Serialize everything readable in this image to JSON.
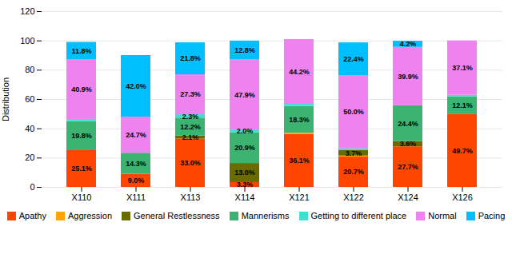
{
  "chart_data": {
    "type": "bar",
    "stacked": true,
    "data_labels": true,
    "categories": [
      "X110",
      "X111",
      "X113",
      "X114",
      "X121",
      "X122",
      "X124",
      "X126"
    ],
    "series": [
      {
        "name": "Apathy",
        "color": "#FF4500",
        "values": [
          25.1,
          9.0,
          33.0,
          3.3,
          36.1,
          20.7,
          27.7,
          49.7
        ],
        "value_labels": [
          "25.1%",
          "9.0%",
          "33.0%",
          "3.3%",
          "36.1%",
          "20.7%",
          "27.7%",
          "49.7%"
        ]
      },
      {
        "name": "Aggression",
        "color": "#FFA500",
        "values": [
          0.0,
          0.0,
          0.0,
          0.0,
          0.9,
          0.7,
          0.0,
          0.0
        ],
        "value_labels": [
          null,
          null,
          null,
          null,
          null,
          null,
          null,
          null
        ]
      },
      {
        "name": "General Restlessness",
        "color": "#6B6B00",
        "values": [
          0.0,
          0.0,
          2.1,
          13.0,
          0.0,
          3.7,
          3.6,
          0.0
        ],
        "value_labels": [
          null,
          null,
          "2.1%",
          "13.0%",
          null,
          "3.7%",
          "3.6%",
          null
        ]
      },
      {
        "name": "Mannerisms",
        "color": "#3CB371",
        "values": [
          19.8,
          14.3,
          12.2,
          20.9,
          18.3,
          0.0,
          24.4,
          12.1
        ],
        "value_labels": [
          "19.8%",
          "14.3%",
          "12.2%",
          "20.9%",
          "18.3%",
          null,
          "24.4%",
          "12.1%"
        ]
      },
      {
        "name": "Getting to different place",
        "color": "#40E0D0",
        "values": [
          1.4,
          0.0,
          2.3,
          2.0,
          1.4,
          1.2,
          0.0,
          1.1
        ],
        "value_labels": [
          null,
          null,
          "2.3%",
          "2.0%",
          null,
          null,
          null,
          null
        ]
      },
      {
        "name": "Normal",
        "color": "#EE82EE",
        "values": [
          40.9,
          24.7,
          27.3,
          47.9,
          44.2,
          50.0,
          39.9,
          37.1
        ],
        "value_labels": [
          "40.9%",
          "24.7%",
          "27.3%",
          "47.9%",
          "44.2%",
          "50.0%",
          "39.9%",
          "37.1%"
        ]
      },
      {
        "name": "Pacing",
        "color": "#00BFFF",
        "values": [
          11.8,
          42.0,
          21.8,
          12.8,
          0.0,
          22.4,
          4.2,
          0.0
        ],
        "value_labels": [
          "11.8%",
          "42.0%",
          "21.8%",
          "12.8%",
          null,
          "22.4%",
          "4.2%",
          null
        ]
      }
    ],
    "ylabel": "Distribution",
    "ylim": [
      0,
      120
    ],
    "yticks": [
      0,
      20,
      40,
      60,
      80,
      100,
      120
    ],
    "grid": true,
    "legend": "bottom"
  }
}
